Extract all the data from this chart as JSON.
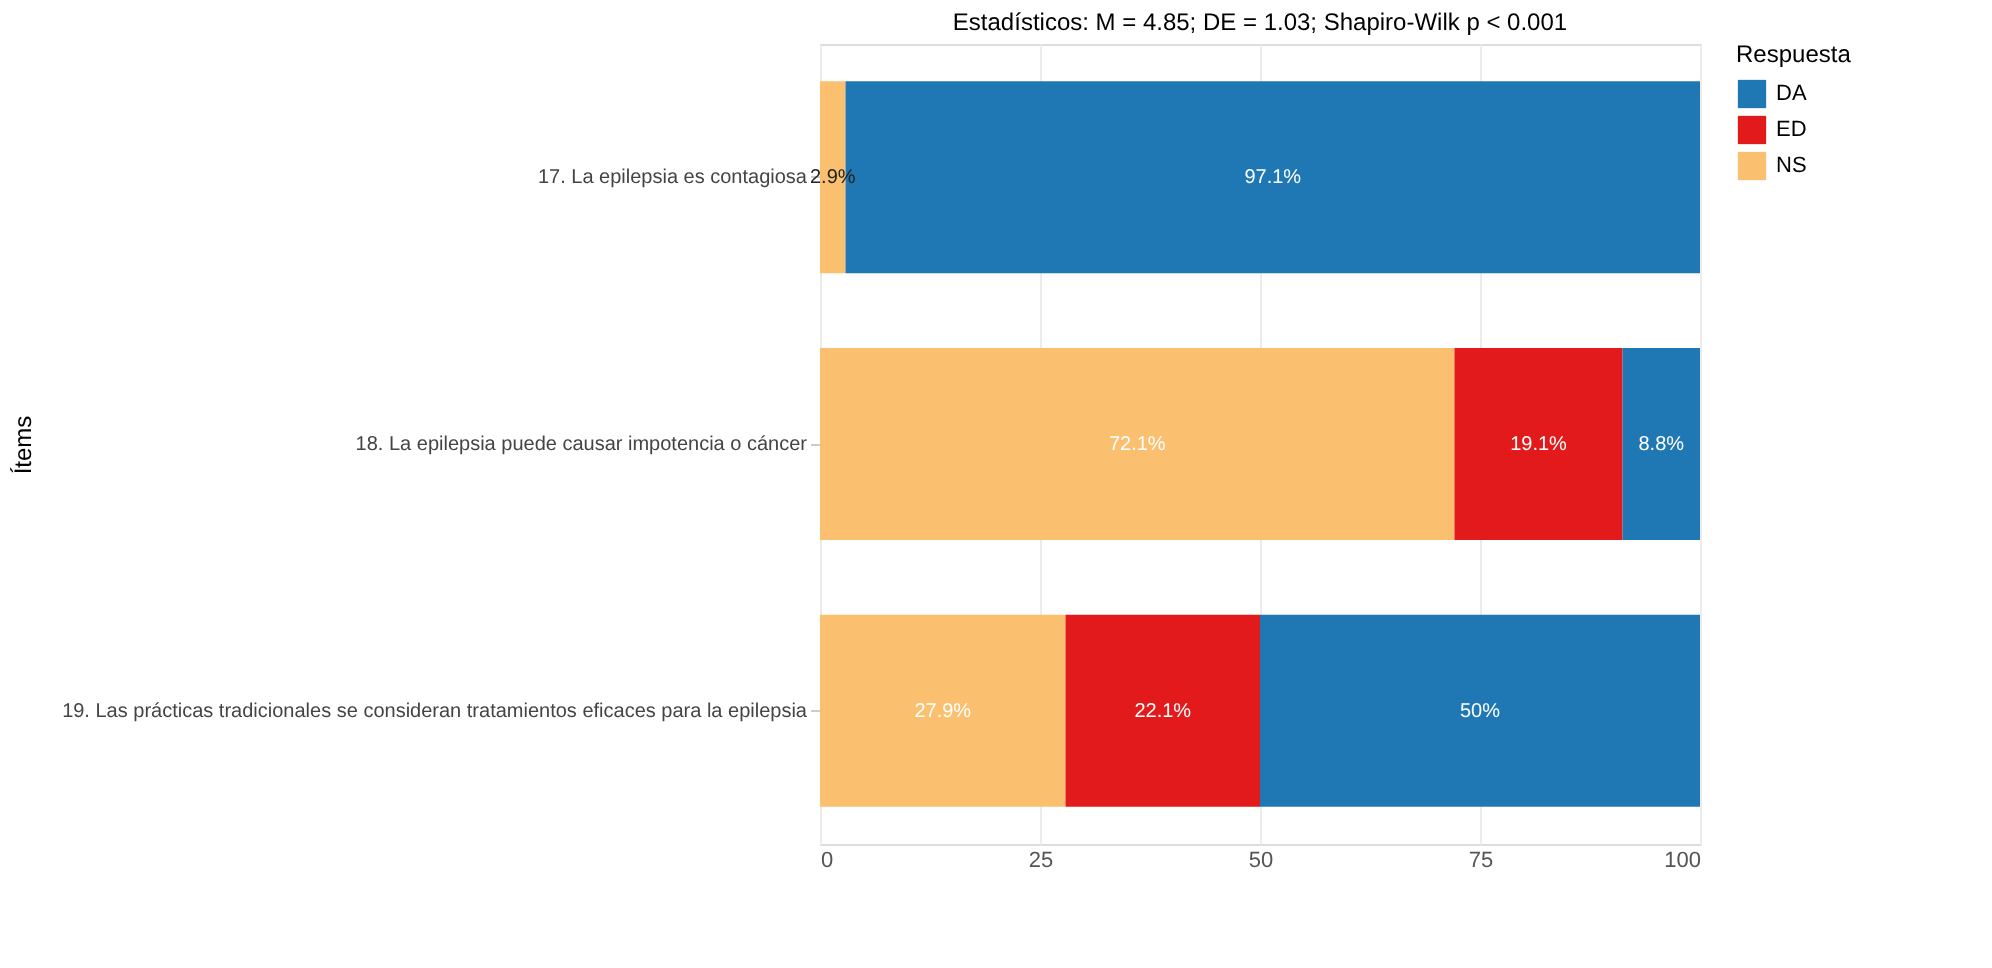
{
  "chart_data": {
    "type": "bar",
    "orientation": "horizontal",
    "stacked": true,
    "title": "Estadísticos: M = 4.85; DE = 1.03; Shapiro-Wilk p < 0.001",
    "ylabel": "Ítems",
    "legend_title": "Respuesta",
    "legend": "right",
    "categories": [
      "17. La epilepsia es contagiosa",
      "18. La epilepsia puede causar impotencia o cáncer",
      "19. Las prácticas tradicionales se consideran tratamientos eficaces para la epilepsia"
    ],
    "series": [
      {
        "name": "NS",
        "color": "#fbbf70",
        "values": [
          2.9,
          72.1,
          27.9
        ],
        "value_labels": [
          "2.9%",
          "72.1%",
          "27.9%"
        ]
      },
      {
        "name": "ED",
        "color": "#e31a1c",
        "values": [
          null,
          19.1,
          22.1
        ],
        "value_labels": [
          null,
          "19.1%",
          "22.1%"
        ]
      },
      {
        "name": "DA",
        "color": "#1f78b4",
        "values": [
          97.1,
          8.8,
          50
        ],
        "value_labels": [
          "97.1%",
          "8.8%",
          "50%"
        ]
      }
    ],
    "xlim": [
      0,
      100
    ],
    "xticks": [
      0,
      25,
      50,
      75,
      100
    ],
    "grid": "x"
  }
}
